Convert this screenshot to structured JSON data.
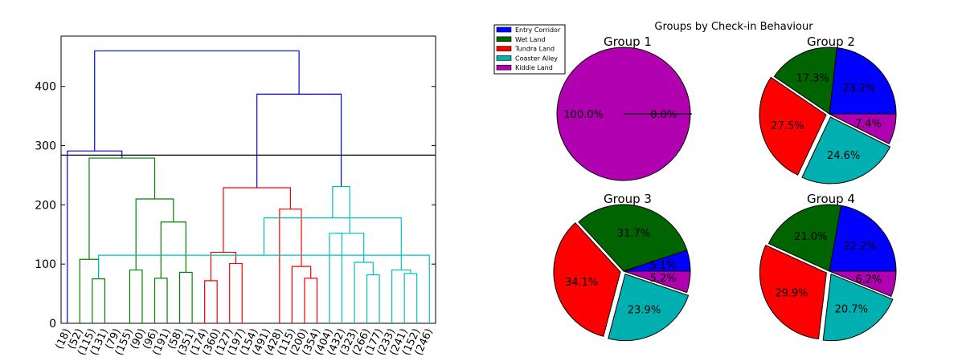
{
  "colors": {
    "entry_corridor": "#0000ff",
    "wet_land": "#006400",
    "tundra_land": "#ff0000",
    "coaster_alley": "#00b0b0",
    "kiddie_land": "#b000b0",
    "link_blue": "#0000ff",
    "link_green": "#008000",
    "link_red": "#ff0000",
    "link_cyan": "#00bfbf"
  },
  "chart_data": [
    {
      "type": "dendrogram",
      "title": "",
      "xlabel": "",
      "ylabel": "",
      "ylim": [
        0,
        485
      ],
      "yticks": [
        0,
        100,
        200,
        300,
        400
      ],
      "cut_line": 284,
      "leaves": [
        "(18)",
        "(52)",
        "(115)",
        "(131)",
        "(79)",
        "(155)",
        "(90)",
        "(96)",
        "(191)",
        "(58)",
        "(351)",
        "(174)",
        "(360)",
        "(127)",
        "(197)",
        "(154)",
        "(491)",
        "(428)",
        "(115)",
        "(200)",
        "(354)",
        "(404)",
        "(432)",
        "(323)",
        "(266)",
        "(177)",
        "(233)",
        "(241)",
        "(152)",
        "(246)"
      ],
      "merges": [
        {
          "left": 2,
          "right": 3,
          "height": 75,
          "color": "green"
        },
        {
          "left": 1,
          "right": 30,
          "height": 108,
          "color": "green"
        },
        {
          "left": 7,
          "right": 8,
          "height": 76,
          "color": "green"
        },
        {
          "left": 9,
          "right": 10,
          "height": 86,
          "color": "green"
        },
        {
          "left": 32,
          "right": 33,
          "height": 171,
          "color": "green"
        },
        {
          "left": 5,
          "right": 6,
          "height": 90,
          "color": "green"
        },
        {
          "left": 35,
          "right": 34,
          "height": 210,
          "color": "green"
        },
        {
          "left": 31,
          "right": 36,
          "height": 279,
          "color": "green"
        },
        {
          "left": 0,
          "right": 37,
          "height": 291,
          "color": "blue"
        },
        {
          "left": 11,
          "right": 12,
          "height": 72,
          "color": "red"
        },
        {
          "left": 13,
          "right": 14,
          "height": 101,
          "color": "red"
        },
        {
          "left": 39,
          "right": 40,
          "height": 120,
          "color": "red"
        },
        {
          "left": 19,
          "right": 20,
          "height": 76,
          "color": "red"
        },
        {
          "left": 18,
          "right": 42,
          "height": 96,
          "color": "red"
        },
        {
          "left": 17,
          "right": 43,
          "height": 193,
          "color": "red"
        },
        {
          "left": 41,
          "right": 44,
          "height": 229,
          "color": "red"
        },
        {
          "left": 21,
          "right": 22,
          "height": 152,
          "color": "cyan"
        },
        {
          "left": 24,
          "right": 25,
          "height": 82,
          "color": "cyan"
        },
        {
          "left": 23,
          "right": 47,
          "height": 103,
          "color": "cyan"
        },
        {
          "left": 46,
          "right": 48,
          "height": 152,
          "color": "cyan"
        },
        {
          "left": 27,
          "right": 28,
          "height": 84,
          "color": "cyan"
        },
        {
          "left": 26,
          "right": 50,
          "height": 90,
          "color": "cyan"
        },
        {
          "left": 29,
          "right": 30,
          "height": 115,
          "color": "cyan"
        },
        {
          "left": 51,
          "right": 52,
          "height": 178,
          "color": "cyan"
        },
        {
          "left": 49,
          "right": 53,
          "height": 231,
          "color": "cyan"
        },
        {
          "left": 45,
          "right": 54,
          "height": 387,
          "color": "blue"
        },
        {
          "left": 38,
          "right": 55,
          "height": 460,
          "color": "blue"
        }
      ]
    },
    {
      "type": "pie",
      "title": "Groups by Check-in Behaviour",
      "legend": [
        "Entry Corridor",
        "Wet Land",
        "Tundra Land",
        "Coaster Alley",
        "Kiddie Land"
      ],
      "legend_position": "top-left",
      "explode": [
        0,
        0,
        0.05,
        0.05,
        0
      ],
      "groups": [
        {
          "title": "Group 1",
          "values": [
            0,
            0,
            0,
            0,
            100
          ],
          "labels": [
            "0.0%",
            "0.0%",
            "0.0%",
            "0.0%",
            "100.0%"
          ]
        },
        {
          "title": "Group 2",
          "values": [
            23.2,
            17.3,
            27.5,
            24.6,
            7.4
          ],
          "labels": [
            "23.2%",
            "17.3%",
            "27.5%",
            "24.6%",
            "7.4%"
          ]
        },
        {
          "title": "Group 3",
          "values": [
            5.1,
            31.7,
            34.1,
            23.9,
            5.2
          ],
          "labels": [
            "5.1%",
            "31.7%",
            "34.1%",
            "23.9%",
            "5.2%"
          ]
        },
        {
          "title": "Group 4",
          "values": [
            22.2,
            21.0,
            29.9,
            20.7,
            6.2
          ],
          "labels": [
            "22.2%",
            "21.0%",
            "29.9%",
            "20.7%",
            "6.2%"
          ]
        }
      ]
    }
  ]
}
